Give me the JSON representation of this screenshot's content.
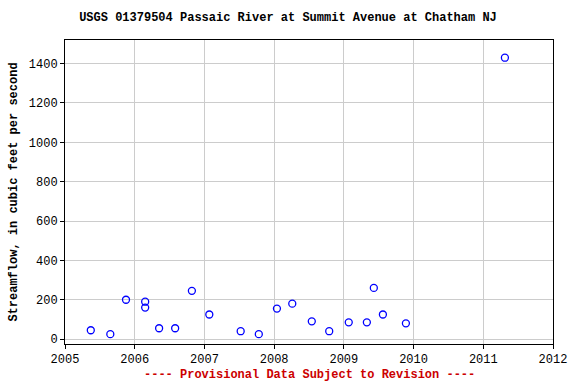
{
  "chart_data": {
    "type": "scatter",
    "title": "USGS 01379504 Passaic River at Summit Avenue at Chatham NJ",
    "y_label": "Streamflow, in cubic feet per second",
    "annotations": [
      "---- Provisional Data Subject to Revision ----"
    ],
    "x": [
      2005.37,
      2005.65,
      2005.875,
      2006.15,
      2006.15,
      2006.35,
      2006.58,
      2006.82,
      2007.07,
      2007.52,
      2007.78,
      2008.04,
      2008.26,
      2008.54,
      2008.79,
      2009.07,
      2009.33,
      2009.43,
      2009.56,
      2009.89,
      2011.31
    ],
    "values": [
      45,
      25,
      200,
      190,
      160,
      55,
      55,
      245,
      125,
      40,
      25,
      155,
      180,
      90,
      40,
      85,
      85,
      260,
      125,
      80,
      1430
    ],
    "color": "#0000ff",
    "marker": "circle-open",
    "xlim": [
      2005,
      2012
    ],
    "xticks": [
      2005,
      2006,
      2007,
      2008,
      2009,
      2010,
      2011,
      2012
    ],
    "ylim": [
      -25,
      1520
    ],
    "yticks": [
      0,
      200,
      400,
      600,
      800,
      1000,
      1200,
      1400
    ],
    "grid": true
  }
}
